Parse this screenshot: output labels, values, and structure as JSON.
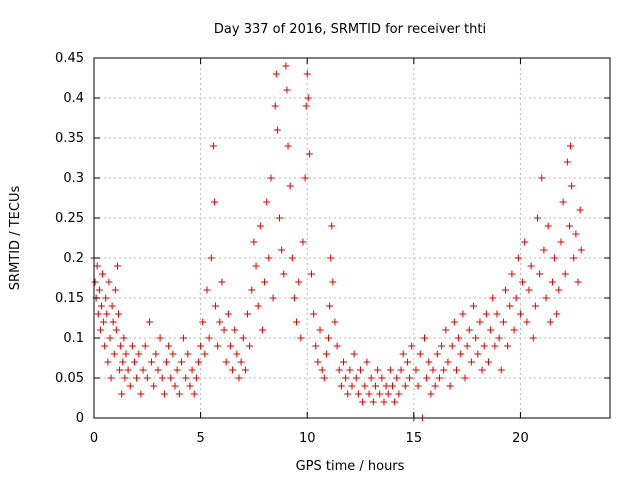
{
  "chart_data": {
    "type": "scatter",
    "title": "Day 337 of 2016, SRMTID for receiver thti",
    "xlabel": "GPS time / hours",
    "ylabel": "SRMTID / TECUs",
    "xlim": [
      0,
      24.2
    ],
    "ylim": [
      0,
      0.45
    ],
    "x_ticks": [
      0,
      5,
      10,
      15,
      20
    ],
    "x_tick_labels": [
      "0",
      "5",
      "10",
      "15",
      "20"
    ],
    "y_ticks": [
      0,
      0.05,
      0.1,
      0.15,
      0.2,
      0.25,
      0.3,
      0.35,
      0.4,
      0.45
    ],
    "y_tick_labels": [
      "0",
      "0.05",
      "0.1",
      "0.15",
      "0.2",
      "0.25",
      "0.3",
      "0.35",
      "0.4",
      "0.45"
    ],
    "grid": true,
    "legend": "none",
    "marker": "plus",
    "color": "#e00000",
    "series": [
      {
        "points": [
          [
            0.0,
            0.2
          ],
          [
            0.05,
            0.17
          ],
          [
            0.1,
            0.15
          ],
          [
            0.15,
            0.19
          ],
          [
            0.2,
            0.13
          ],
          [
            0.25,
            0.16
          ],
          [
            0.3,
            0.11
          ],
          [
            0.35,
            0.14
          ],
          [
            0.4,
            0.18
          ],
          [
            0.45,
            0.12
          ],
          [
            0.5,
            0.09
          ],
          [
            0.55,
            0.15
          ],
          [
            0.6,
            0.13
          ],
          [
            0.65,
            0.07
          ],
          [
            0.7,
            0.17
          ],
          [
            0.75,
            0.1
          ],
          [
            0.8,
            0.05
          ],
          [
            0.85,
            0.14
          ],
          [
            0.9,
            0.12
          ],
          [
            0.95,
            0.08
          ],
          [
            1.0,
            0.16
          ],
          [
            1.05,
            0.11
          ],
          [
            1.1,
            0.19
          ],
          [
            1.15,
            0.13
          ],
          [
            1.2,
            0.06
          ],
          [
            1.25,
            0.09
          ],
          [
            1.3,
            0.03
          ],
          [
            1.35,
            0.07
          ],
          [
            1.4,
            0.1
          ],
          [
            1.45,
            0.05
          ],
          [
            1.5,
            0.08
          ],
          [
            1.6,
            0.06
          ],
          [
            1.7,
            0.04
          ],
          [
            1.8,
            0.09
          ],
          [
            1.9,
            0.07
          ],
          [
            2.0,
            0.05
          ],
          [
            2.1,
            0.08
          ],
          [
            2.2,
            0.03
          ],
          [
            2.3,
            0.06
          ],
          [
            2.4,
            0.09
          ],
          [
            2.5,
            0.05
          ],
          [
            2.6,
            0.12
          ],
          [
            2.7,
            0.07
          ],
          [
            2.8,
            0.04
          ],
          [
            2.9,
            0.08
          ],
          [
            3.0,
            0.06
          ],
          [
            3.1,
            0.1
          ],
          [
            3.2,
            0.05
          ],
          [
            3.3,
            0.03
          ],
          [
            3.4,
            0.07
          ],
          [
            3.5,
            0.09
          ],
          [
            3.6,
            0.05
          ],
          [
            3.7,
            0.08
          ],
          [
            3.8,
            0.04
          ],
          [
            3.9,
            0.06
          ],
          [
            4.0,
            0.03
          ],
          [
            4.1,
            0.07
          ],
          [
            4.2,
            0.1
          ],
          [
            4.3,
            0.05
          ],
          [
            4.4,
            0.08
          ],
          [
            4.5,
            0.04
          ],
          [
            4.6,
            0.06
          ],
          [
            4.7,
            0.03
          ],
          [
            4.8,
            0.05
          ],
          [
            4.9,
            0.07
          ],
          [
            5.0,
            0.09
          ],
          [
            5.1,
            0.12
          ],
          [
            5.2,
            0.08
          ],
          [
            5.3,
            0.16
          ],
          [
            5.4,
            0.1
          ],
          [
            5.5,
            0.2
          ],
          [
            5.6,
            0.34
          ],
          [
            5.65,
            0.27
          ],
          [
            5.7,
            0.14
          ],
          [
            5.8,
            0.09
          ],
          [
            5.9,
            0.12
          ],
          [
            6.0,
            0.17
          ],
          [
            6.1,
            0.11
          ],
          [
            6.2,
            0.07
          ],
          [
            6.3,
            0.13
          ],
          [
            6.4,
            0.09
          ],
          [
            6.5,
            0.06
          ],
          [
            6.6,
            0.11
          ],
          [
            6.7,
            0.08
          ],
          [
            6.8,
            0.05
          ],
          [
            6.9,
            0.07
          ],
          [
            7.0,
            0.1
          ],
          [
            7.1,
            0.06
          ],
          [
            7.2,
            0.13
          ],
          [
            7.3,
            0.09
          ],
          [
            7.4,
            0.16
          ],
          [
            7.5,
            0.22
          ],
          [
            7.6,
            0.19
          ],
          [
            7.7,
            0.14
          ],
          [
            7.8,
            0.24
          ],
          [
            7.9,
            0.11
          ],
          [
            8.0,
            0.17
          ],
          [
            8.1,
            0.27
          ],
          [
            8.2,
            0.2
          ],
          [
            8.3,
            0.3
          ],
          [
            8.4,
            0.15
          ],
          [
            8.5,
            0.39
          ],
          [
            8.55,
            0.43
          ],
          [
            8.6,
            0.36
          ],
          [
            8.7,
            0.25
          ],
          [
            8.8,
            0.21
          ],
          [
            8.9,
            0.18
          ],
          [
            9.0,
            0.44
          ],
          [
            9.05,
            0.41
          ],
          [
            9.1,
            0.34
          ],
          [
            9.2,
            0.29
          ],
          [
            9.3,
            0.2
          ],
          [
            9.4,
            0.15
          ],
          [
            9.5,
            0.12
          ],
          [
            9.6,
            0.17
          ],
          [
            9.7,
            0.1
          ],
          [
            9.8,
            0.22
          ],
          [
            9.9,
            0.3
          ],
          [
            9.95,
            0.39
          ],
          [
            10.0,
            0.43
          ],
          [
            10.05,
            0.4
          ],
          [
            10.1,
            0.33
          ],
          [
            10.2,
            0.18
          ],
          [
            10.3,
            0.13
          ],
          [
            10.4,
            0.09
          ],
          [
            10.5,
            0.07
          ],
          [
            10.6,
            0.11
          ],
          [
            10.7,
            0.06
          ],
          [
            10.8,
            0.05
          ],
          [
            10.9,
            0.08
          ],
          [
            11.0,
            0.1
          ],
          [
            11.05,
            0.14
          ],
          [
            11.1,
            0.2
          ],
          [
            11.15,
            0.24
          ],
          [
            11.2,
            0.17
          ],
          [
            11.3,
            0.12
          ],
          [
            11.4,
            0.09
          ],
          [
            11.5,
            0.06
          ],
          [
            11.6,
            0.04
          ],
          [
            11.7,
            0.07
          ],
          [
            11.8,
            0.05
          ],
          [
            11.9,
            0.03
          ],
          [
            12.0,
            0.06
          ],
          [
            12.1,
            0.04
          ],
          [
            12.2,
            0.08
          ],
          [
            12.3,
            0.05
          ],
          [
            12.4,
            0.03
          ],
          [
            12.5,
            0.06
          ],
          [
            12.6,
            0.02
          ],
          [
            12.7,
            0.04
          ],
          [
            12.8,
            0.07
          ],
          [
            12.9,
            0.03
          ],
          [
            13.0,
            0.05
          ],
          [
            13.1,
            0.02
          ],
          [
            13.2,
            0.04
          ],
          [
            13.3,
            0.06
          ],
          [
            13.4,
            0.03
          ],
          [
            13.5,
            0.05
          ],
          [
            13.6,
            0.02
          ],
          [
            13.7,
            0.04
          ],
          [
            13.8,
            0.03
          ],
          [
            13.9,
            0.06
          ],
          [
            14.0,
            0.04
          ],
          [
            14.1,
            0.02
          ],
          [
            14.2,
            0.05
          ],
          [
            14.3,
            0.03
          ],
          [
            14.4,
            0.06
          ],
          [
            14.5,
            0.08
          ],
          [
            14.6,
            0.04
          ],
          [
            14.7,
            0.07
          ],
          [
            14.8,
            0.05
          ],
          [
            14.9,
            0.09
          ],
          [
            15.0,
            0.0
          ],
          [
            15.1,
            0.06
          ],
          [
            15.2,
            0.04
          ],
          [
            15.3,
            0.08
          ],
          [
            15.4,
            0.0
          ],
          [
            15.5,
            0.1
          ],
          [
            15.6,
            0.05
          ],
          [
            15.7,
            0.07
          ],
          [
            15.8,
            0.03
          ],
          [
            15.9,
            0.06
          ],
          [
            16.0,
            0.04
          ],
          [
            16.1,
            0.08
          ],
          [
            16.2,
            0.05
          ],
          [
            16.3,
            0.09
          ],
          [
            16.4,
            0.06
          ],
          [
            16.5,
            0.11
          ],
          [
            16.6,
            0.07
          ],
          [
            16.7,
            0.04
          ],
          [
            16.8,
            0.09
          ],
          [
            16.9,
            0.12
          ],
          [
            17.0,
            0.06
          ],
          [
            17.1,
            0.1
          ],
          [
            17.2,
            0.08
          ],
          [
            17.3,
            0.13
          ],
          [
            17.4,
            0.05
          ],
          [
            17.5,
            0.09
          ],
          [
            17.6,
            0.11
          ],
          [
            17.7,
            0.07
          ],
          [
            17.8,
            0.14
          ],
          [
            17.9,
            0.1
          ],
          [
            18.0,
            0.08
          ],
          [
            18.1,
            0.12
          ],
          [
            18.2,
            0.06
          ],
          [
            18.3,
            0.09
          ],
          [
            18.4,
            0.13
          ],
          [
            18.5,
            0.07
          ],
          [
            18.6,
            0.11
          ],
          [
            18.7,
            0.15
          ],
          [
            18.8,
            0.09
          ],
          [
            18.9,
            0.13
          ],
          [
            19.0,
            0.1
          ],
          [
            19.1,
            0.06
          ],
          [
            19.2,
            0.12
          ],
          [
            19.3,
            0.16
          ],
          [
            19.4,
            0.09
          ],
          [
            19.5,
            0.14
          ],
          [
            19.6,
            0.18
          ],
          [
            19.7,
            0.11
          ],
          [
            19.8,
            0.15
          ],
          [
            19.9,
            0.2
          ],
          [
            20.0,
            0.13
          ],
          [
            20.1,
            0.17
          ],
          [
            20.2,
            0.22
          ],
          [
            20.3,
            0.12
          ],
          [
            20.4,
            0.16
          ],
          [
            20.5,
            0.19
          ],
          [
            20.6,
            0.1
          ],
          [
            20.7,
            0.14
          ],
          [
            20.8,
            0.25
          ],
          [
            20.9,
            0.18
          ],
          [
            21.0,
            0.3
          ],
          [
            21.1,
            0.21
          ],
          [
            21.2,
            0.15
          ],
          [
            21.3,
            0.24
          ],
          [
            21.4,
            0.12
          ],
          [
            21.5,
            0.17
          ],
          [
            21.6,
            0.2
          ],
          [
            21.7,
            0.13
          ],
          [
            21.8,
            0.16
          ],
          [
            21.9,
            0.22
          ],
          [
            22.0,
            0.27
          ],
          [
            22.1,
            0.18
          ],
          [
            22.2,
            0.32
          ],
          [
            22.3,
            0.24
          ],
          [
            22.35,
            0.34
          ],
          [
            22.4,
            0.29
          ],
          [
            22.5,
            0.2
          ],
          [
            22.6,
            0.23
          ],
          [
            22.7,
            0.17
          ],
          [
            22.8,
            0.26
          ],
          [
            22.85,
            0.21
          ]
        ]
      }
    ]
  }
}
